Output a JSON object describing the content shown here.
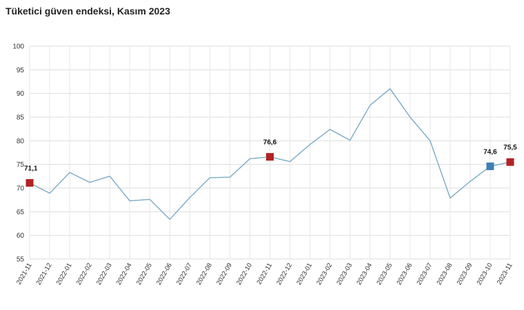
{
  "header": {
    "title": "Tüketici güven endeksi, Kasım 2023"
  },
  "chart_data": {
    "type": "line",
    "title": "Tüketici güven endeksi, Kasım 2023",
    "xlabel": "",
    "ylabel": "",
    "ylim": [
      55,
      100
    ],
    "yticks": [
      55,
      60,
      65,
      70,
      75,
      80,
      85,
      90,
      95,
      100
    ],
    "grid": true,
    "legend": "none",
    "line_color": "#7aaac6",
    "categories": [
      "2021-11",
      "2021-12",
      "2022-01",
      "2022-02",
      "2022-03",
      "2022-04",
      "2022-05",
      "2022-06",
      "2022-07",
      "2022-08",
      "2022-09",
      "2022-10",
      "2022-11",
      "2022-12",
      "2023-01",
      "2023-02",
      "2023-03",
      "2023-04",
      "2023-05",
      "2023-06",
      "2023-07",
      "2023-08",
      "2023-09",
      "2023-10",
      "2023-11"
    ],
    "series": [
      {
        "values": [
          71.1,
          68.9,
          73.3,
          71.2,
          72.5,
          67.3,
          67.6,
          63.4,
          68.0,
          72.2,
          72.3,
          76.2,
          76.6,
          75.6,
          79.2,
          82.4,
          80.1,
          87.5,
          91.0,
          85.0,
          80.0,
          67.9,
          71.4,
          74.6,
          75.5
        ]
      }
    ],
    "markers": [
      {
        "category": "2021-11",
        "value": 71.1,
        "label": "71,1",
        "color": "#b22222"
      },
      {
        "category": "2022-11",
        "value": 76.6,
        "label": "76,6",
        "color": "#b22222"
      },
      {
        "category": "2023-10",
        "value": 74.6,
        "label": "74,6",
        "color": "#3f7fb5"
      },
      {
        "category": "2023-11",
        "value": 75.5,
        "label": "75,5",
        "color": "#b22222"
      }
    ]
  }
}
